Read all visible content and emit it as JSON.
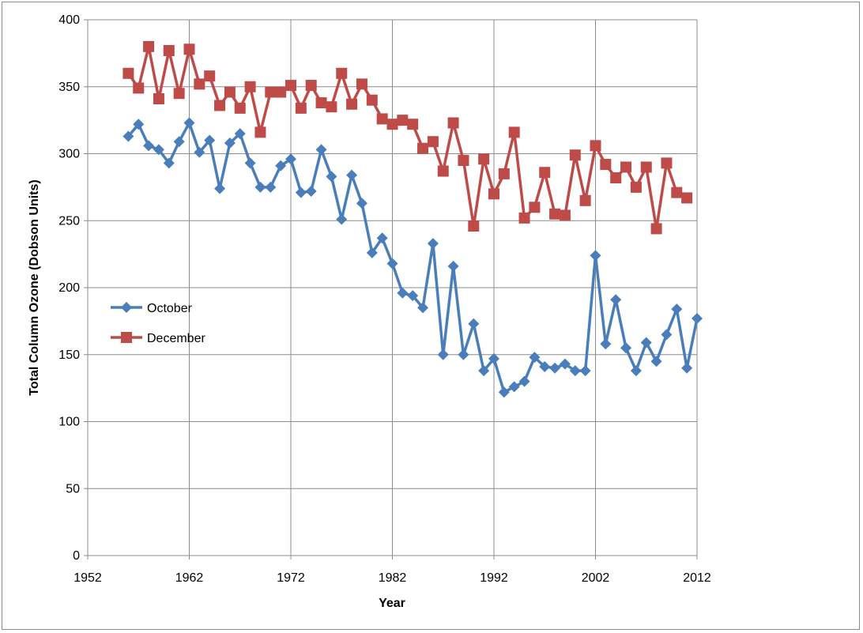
{
  "chart_data": {
    "type": "line",
    "title": "",
    "xlabel": "Year",
    "ylabel": "Total Column Ozone (Dobson Units)",
    "xlim": [
      1952,
      2012
    ],
    "ylim": [
      0,
      400
    ],
    "x_ticks": [
      1952,
      1962,
      1972,
      1982,
      1992,
      2002,
      2012
    ],
    "y_ticks": [
      0,
      50,
      100,
      150,
      200,
      250,
      300,
      350,
      400
    ],
    "grid": true,
    "legend": "middle-left",
    "series": [
      {
        "name": "October",
        "color": "#4a7ebb",
        "marker": "diamond",
        "x": [
          1956,
          1957,
          1958,
          1959,
          1960,
          1961,
          1962,
          1963,
          1964,
          1965,
          1966,
          1967,
          1968,
          1969,
          1970,
          1971,
          1972,
          1973,
          1974,
          1975,
          1976,
          1977,
          1978,
          1979,
          1980,
          1981,
          1982,
          1983,
          1984,
          1985,
          1986,
          1987,
          1988,
          1989,
          1990,
          1991,
          1992,
          1993,
          1994,
          1995,
          1996,
          1997,
          1998,
          1999,
          2000,
          2001,
          2002,
          2003,
          2004,
          2005,
          2006,
          2007,
          2008,
          2009,
          2010,
          2011,
          2012
        ],
        "values": [
          313,
          322,
          306,
          303,
          293,
          309,
          323,
          301,
          310,
          274,
          308,
          315,
          293,
          275,
          275,
          291,
          296,
          271,
          272,
          303,
          283,
          251,
          284,
          263,
          226,
          237,
          218,
          196,
          194,
          185,
          233,
          150,
          216,
          150,
          173,
          138,
          147,
          122,
          126,
          130,
          148,
          141,
          140,
          143,
          138,
          138,
          224,
          158,
          191,
          155,
          138,
          159,
          145,
          165,
          184,
          140,
          177
        ]
      },
      {
        "name": "December",
        "color": "#be4b48",
        "marker": "square",
        "x": [
          1956,
          1957,
          1958,
          1959,
          1960,
          1961,
          1962,
          1963,
          1964,
          1965,
          1966,
          1967,
          1968,
          1969,
          1970,
          1971,
          1972,
          1973,
          1974,
          1975,
          1976,
          1977,
          1978,
          1979,
          1980,
          1981,
          1982,
          1983,
          1984,
          1985,
          1986,
          1987,
          1988,
          1989,
          1990,
          1991,
          1992,
          1993,
          1994,
          1995,
          1996,
          1997,
          1998,
          1999,
          2000,
          2001,
          2002,
          2003,
          2004,
          2005,
          2006,
          2007,
          2008,
          2009,
          2010,
          2011
        ],
        "values": [
          360,
          349,
          380,
          341,
          377,
          345,
          378,
          352,
          358,
          336,
          346,
          334,
          350,
          316,
          346,
          346,
          351,
          334,
          351,
          338,
          335,
          360,
          337,
          352,
          340,
          326,
          322,
          325,
          322,
          304,
          309,
          287,
          323,
          295,
          246,
          296,
          270,
          285,
          316,
          252,
          260,
          286,
          255,
          254,
          299,
          265,
          306,
          292,
          282,
          290,
          275,
          290,
          244,
          293,
          271,
          267
        ]
      }
    ]
  }
}
